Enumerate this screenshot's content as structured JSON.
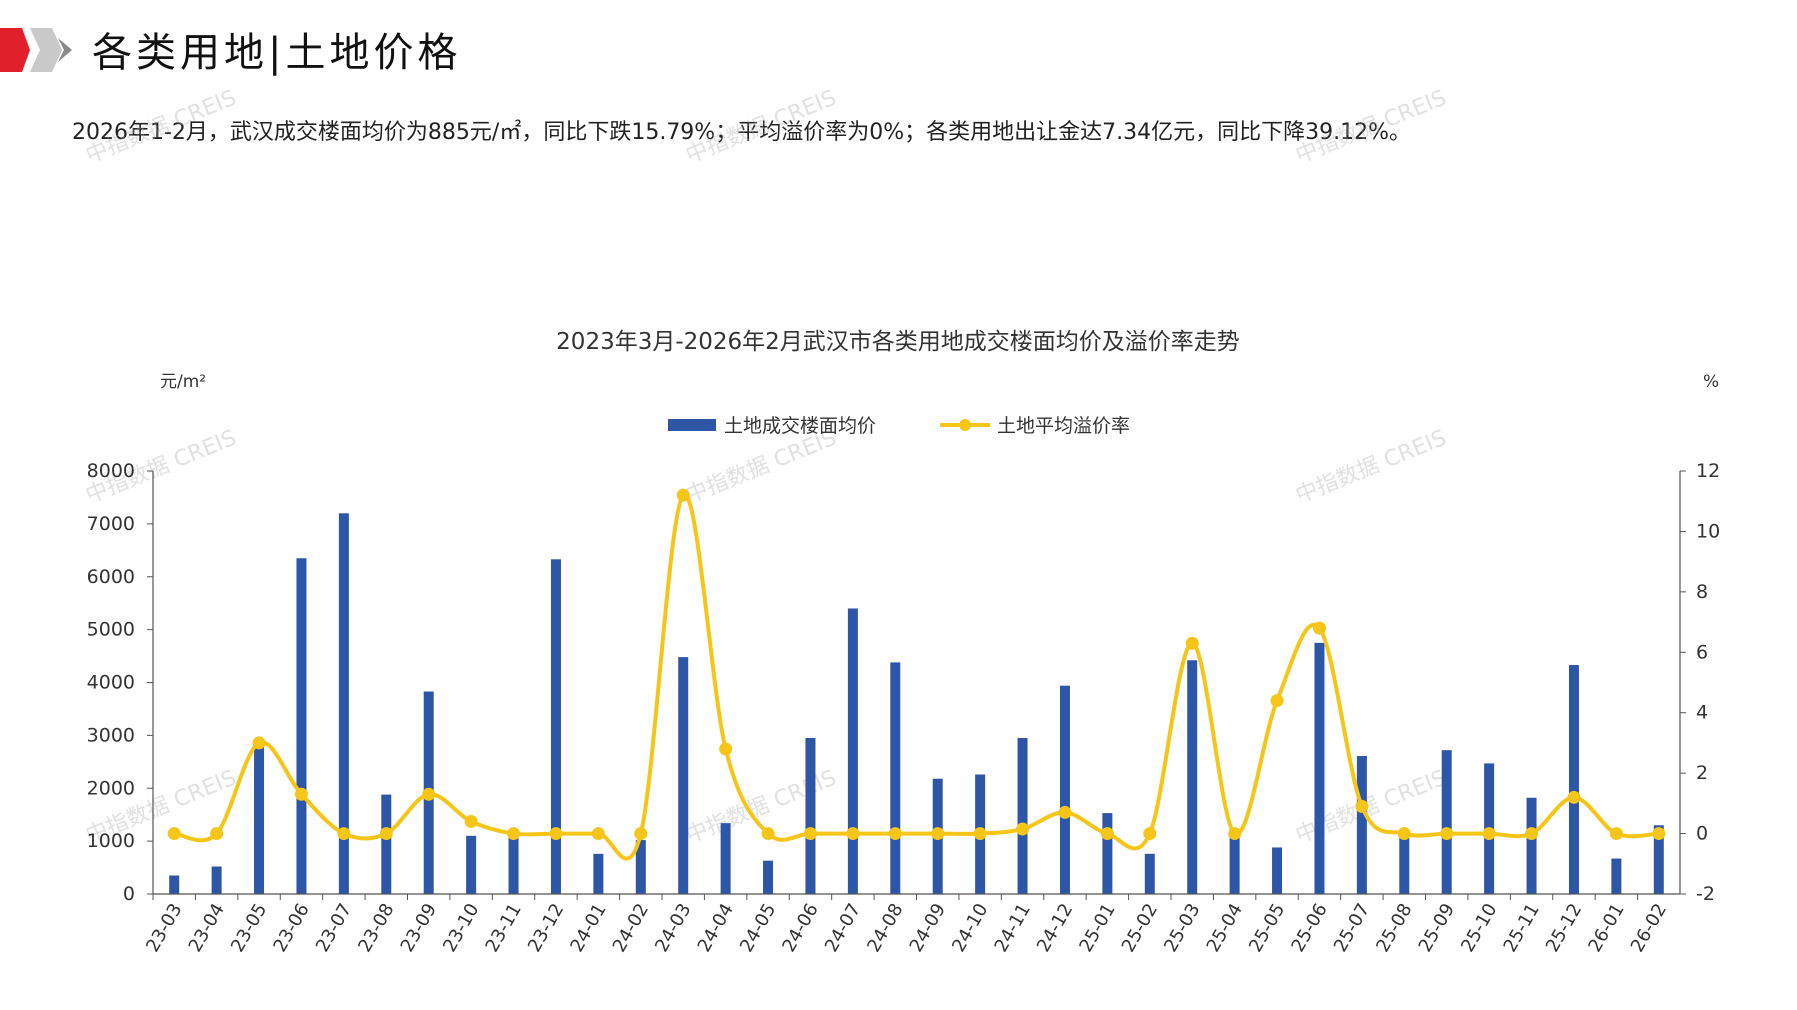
{
  "header": {
    "title": "各类用地|土地价格",
    "summary": "2026年1-2月，武汉成交楼面均价为885元/㎡，同比下跌15.79%；平均溢价率为0%；各类用地出让金达7.34亿元，同比下降39.12%。"
  },
  "watermark": "中指数据 CREIS",
  "colors": {
    "bar": "#2e56a6",
    "line": "#f5c518",
    "accent": "#e0202a"
  },
  "chart_data": {
    "type": "bar+line",
    "title": "2023年3月-2026年2月武汉市各类用地成交楼面均价及溢价率走势",
    "y_left_unit": "元/m²",
    "y_right_unit": "%",
    "y_left_range": [
      0,
      8000
    ],
    "y_left_ticks": [
      "0",
      "1000",
      "2000",
      "3000",
      "4000",
      "5000",
      "6000",
      "7000",
      "8000"
    ],
    "y_right_range": [
      -2,
      12
    ],
    "y_right_ticks": [
      "-2",
      "0",
      "2",
      "4",
      "6",
      "8",
      "10",
      "12"
    ],
    "legend_position": "top-center",
    "categories": [
      "23-03",
      "23-04",
      "23-05",
      "23-06",
      "23-07",
      "23-08",
      "23-09",
      "23-10",
      "23-11",
      "23-12",
      "24-01",
      "24-02",
      "24-03",
      "24-04",
      "24-05",
      "24-06",
      "24-07",
      "24-08",
      "24-09",
      "24-10",
      "24-11",
      "24-12",
      "25-01",
      "25-02",
      "25-03",
      "25-04",
      "25-05",
      "25-06",
      "25-07",
      "25-08",
      "25-09",
      "25-10",
      "25-11",
      "25-12",
      "26-01",
      "26-02"
    ],
    "series": [
      {
        "name": "土地成交楼面均价",
        "kind": "bar",
        "axis": "left",
        "values": [
          350,
          520,
          2800,
          6350,
          7200,
          1880,
          3830,
          1100,
          1100,
          6330,
          760,
          1020,
          4480,
          1340,
          630,
          2950,
          5400,
          4380,
          2180,
          2260,
          2950,
          3940,
          1530,
          760,
          4420,
          1100,
          880,
          4750,
          2610,
          1100,
          2720,
          2470,
          1820,
          4330,
          670,
          1300
        ]
      },
      {
        "name": "土地平均溢价率",
        "kind": "line",
        "axis": "right",
        "values": [
          0,
          0,
          3,
          1.3,
          0,
          0,
          1.3,
          0.4,
          0,
          0,
          0,
          0,
          11.2,
          2.8,
          0,
          0,
          0,
          0,
          0,
          0,
          0.15,
          0.7,
          0,
          0,
          6.3,
          0,
          4.4,
          6.8,
          0.9,
          0,
          0,
          0,
          0,
          1.2,
          0,
          0
        ]
      }
    ]
  }
}
